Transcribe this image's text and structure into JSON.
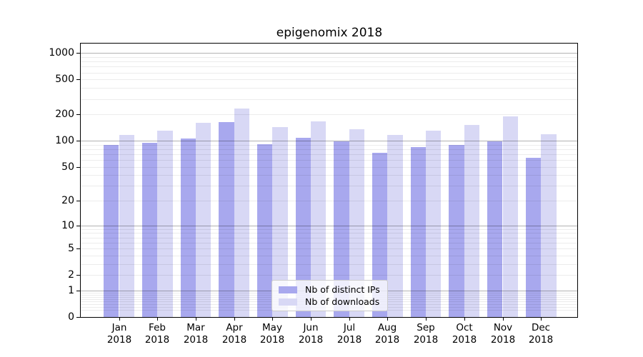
{
  "title": "epigenomix 2018",
  "colors": {
    "series_distinct_ips": "#a8a8ee",
    "series_downloads": "#d8d8f5",
    "axis": "#000000",
    "grid_major": "rgba(0,0,0,0.30)",
    "grid_minor": "rgba(0,0,0,0.075)",
    "background": "#ffffff",
    "legend_border": "#cccccc"
  },
  "legend": {
    "items": [
      {
        "label": "Nb of distinct IPs",
        "color": "#a8a8ee"
      },
      {
        "label": "Nb of downloads",
        "color": "#d8d8f5"
      }
    ]
  },
  "chart_data": {
    "type": "bar",
    "title": "epigenomix 2018",
    "months": [
      "Jan",
      "Feb",
      "Mar",
      "Apr",
      "May",
      "Jun",
      "Jul",
      "Aug",
      "Sep",
      "Oct",
      "Nov",
      "Dec"
    ],
    "year_label": "2018",
    "categories": [
      "Jan 2018",
      "Feb 2018",
      "Mar 2018",
      "Apr 2018",
      "May 2018",
      "Jun 2018",
      "Jul 2018",
      "Aug 2018",
      "Sep 2018",
      "Oct 2018",
      "Nov 2018",
      "Dec 2018"
    ],
    "series": [
      {
        "name": "Nb of distinct IPs",
        "color": "#a8a8ee",
        "values": [
          89,
          94,
          106,
          164,
          91,
          107,
          98,
          73,
          85,
          89,
          98,
          64
        ]
      },
      {
        "name": "Nb of downloads",
        "color": "#d8d8f5",
        "values": [
          117,
          131,
          160,
          235,
          142,
          167,
          134,
          116,
          130,
          150,
          190,
          118
        ]
      }
    ],
    "xlabel": "",
    "ylabel": "",
    "yscale": "log1p",
    "ylim": [
      0,
      1280
    ],
    "y_ticks": [
      0,
      1,
      2,
      5,
      10,
      20,
      50,
      100,
      200,
      500,
      1000
    ],
    "grid": {
      "major_lines": [
        1,
        10,
        100,
        1000
      ],
      "minor_decades": [
        0.1,
        1,
        10,
        100
      ],
      "minor_multipliers": [
        2,
        3,
        4,
        5,
        6,
        7,
        8,
        9
      ]
    },
    "legend_position": "lower center"
  }
}
